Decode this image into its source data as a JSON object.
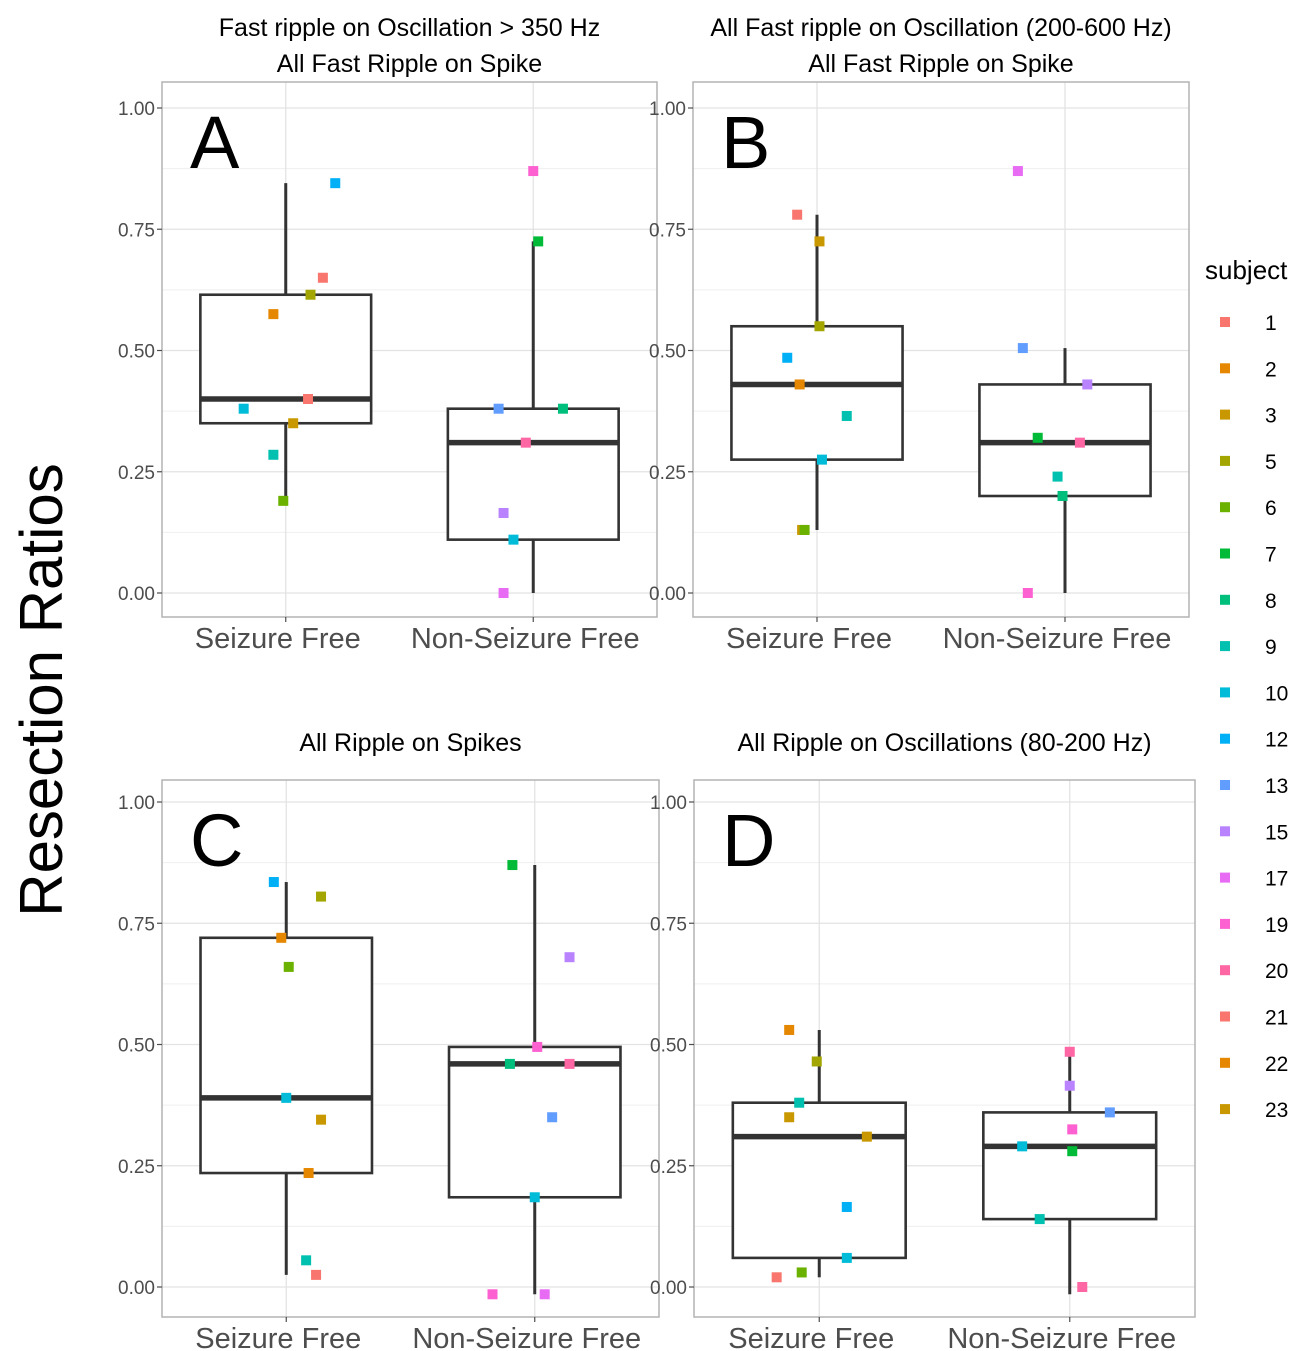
{
  "figure": {
    "ylabel": "Resection Ratios",
    "legend": {
      "title": "subject",
      "position": "right",
      "entries": [
        {
          "label": "1",
          "color": "#F8766D"
        },
        {
          "label": "2",
          "color": "#E58700"
        },
        {
          "label": "3",
          "color": "#C99800"
        },
        {
          "label": "5",
          "color": "#A3A500"
        },
        {
          "label": "6",
          "color": "#6BB100"
        },
        {
          "label": "7",
          "color": "#00BA38"
        },
        {
          "label": "8",
          "color": "#00BF7D"
        },
        {
          "label": "9",
          "color": "#00C0AF"
        },
        {
          "label": "10",
          "color": "#00BCD8"
        },
        {
          "label": "12",
          "color": "#00B0F6"
        },
        {
          "label": "13",
          "color": "#619CFF"
        },
        {
          "label": "15",
          "color": "#B983FF"
        },
        {
          "label": "17",
          "color": "#E76BF3"
        },
        {
          "label": "19",
          "color": "#FD61D1"
        },
        {
          "label": "20",
          "color": "#FF67A4"
        },
        {
          "label": "21",
          "color": "#F8766D"
        },
        {
          "label": "22",
          "color": "#E58700"
        },
        {
          "label": "23",
          "color": "#C99800"
        }
      ]
    }
  },
  "chart_data": [
    {
      "type": "box",
      "panel_letter": "A",
      "title_lines": [
        "Fast ripple on Oscillation > 350 Hz",
        "All Fast Ripple on Spike"
      ],
      "categories": [
        "Seizure Free",
        "Non-Seizure Free"
      ],
      "ylim": [
        -0.04,
        1.06
      ],
      "yticks": [
        "0.00",
        "0.25",
        "0.50",
        "0.75",
        "1.00"
      ],
      "grid": true,
      "boxes": [
        {
          "lower_whisker": 0.19,
          "q1": 0.35,
          "median": 0.4,
          "q3": 0.615,
          "upper_whisker": 0.845
        },
        {
          "lower_whisker": 0.0,
          "q1": 0.11,
          "median": 0.31,
          "q3": 0.38,
          "upper_whisker": 0.725
        }
      ],
      "points": [
        {
          "group": 0,
          "dx": 0.15,
          "y": 0.65,
          "color": "#F8766D"
        },
        {
          "group": 0,
          "dx": -0.05,
          "y": 0.575,
          "color": "#E58700"
        },
        {
          "group": 0,
          "dx": 0.03,
          "y": 0.35,
          "color": "#C99800"
        },
        {
          "group": 0,
          "dx": 0.1,
          "y": 0.615,
          "color": "#A3A500"
        },
        {
          "group": 0,
          "dx": -0.01,
          "y": 0.19,
          "color": "#6BB100"
        },
        {
          "group": 0,
          "dx": 0.09,
          "y": 0.4,
          "color": "#F8766D"
        },
        {
          "group": 0,
          "dx": -0.17,
          "y": 0.38,
          "color": "#00BCD8"
        },
        {
          "group": 0,
          "dx": -0.05,
          "y": 0.285,
          "color": "#00C0AF"
        },
        {
          "group": 0,
          "dx": 0.2,
          "y": 0.845,
          "color": "#00B0F6"
        },
        {
          "group": 1,
          "dx": 0.02,
          "y": 0.725,
          "color": "#00BA38"
        },
        {
          "group": 1,
          "dx": 0.12,
          "y": 0.38,
          "color": "#00BF7D"
        },
        {
          "group": 1,
          "dx": -0.14,
          "y": 0.38,
          "color": "#619CFF"
        },
        {
          "group": 1,
          "dx": -0.08,
          "y": 0.11,
          "color": "#00BCD8"
        },
        {
          "group": 1,
          "dx": -0.12,
          "y": 0.165,
          "color": "#B983FF"
        },
        {
          "group": 1,
          "dx": 0.0,
          "y": 0.87,
          "color": "#FD61D1"
        },
        {
          "group": 1,
          "dx": -0.12,
          "y": 0.0,
          "color": "#E76BF3"
        },
        {
          "group": 1,
          "dx": -0.03,
          "y": 0.31,
          "color": "#FF67A4"
        }
      ]
    },
    {
      "type": "box",
      "panel_letter": "B",
      "title_lines": [
        "All Fast ripple on Oscillation (200-600 Hz)",
        "All Fast Ripple on Spike"
      ],
      "categories": [
        "Seizure Free",
        "Non-Seizure Free"
      ],
      "ylim": [
        -0.04,
        1.06
      ],
      "yticks": [
        "0.00",
        "0.25",
        "0.50",
        "0.75",
        "1.00"
      ],
      "grid": true,
      "boxes": [
        {
          "lower_whisker": 0.13,
          "q1": 0.275,
          "median": 0.43,
          "q3": 0.55,
          "upper_whisker": 0.78
        },
        {
          "lower_whisker": 0.0,
          "q1": 0.2,
          "median": 0.31,
          "q3": 0.43,
          "upper_whisker": 0.505
        }
      ],
      "points": [
        {
          "group": 0,
          "dx": -0.08,
          "y": 0.78,
          "color": "#F8766D"
        },
        {
          "group": 0,
          "dx": 0.01,
          "y": 0.725,
          "color": "#C99800"
        },
        {
          "group": 0,
          "dx": -0.07,
          "y": 0.43,
          "color": "#E58700"
        },
        {
          "group": 0,
          "dx": 0.01,
          "y": 0.55,
          "color": "#A3A500"
        },
        {
          "group": 0,
          "dx": -0.06,
          "y": 0.13,
          "color": "#C99800"
        },
        {
          "group": 0,
          "dx": -0.05,
          "y": 0.13,
          "color": "#6BB100"
        },
        {
          "group": 0,
          "dx": -0.12,
          "y": 0.485,
          "color": "#00B0F6"
        },
        {
          "group": 0,
          "dx": 0.12,
          "y": 0.365,
          "color": "#00C0AF"
        },
        {
          "group": 0,
          "dx": 0.02,
          "y": 0.275,
          "color": "#00BCD8"
        },
        {
          "group": 1,
          "dx": -0.17,
          "y": 0.505,
          "color": "#619CFF"
        },
        {
          "group": 1,
          "dx": 0.09,
          "y": 0.43,
          "color": "#B983FF"
        },
        {
          "group": 1,
          "dx": -0.11,
          "y": 0.32,
          "color": "#00BA38"
        },
        {
          "group": 1,
          "dx": 0.06,
          "y": 0.31,
          "color": "#FF67A4"
        },
        {
          "group": 1,
          "dx": -0.03,
          "y": 0.24,
          "color": "#00C0AF"
        },
        {
          "group": 1,
          "dx": -0.01,
          "y": 0.2,
          "color": "#00BF7D"
        },
        {
          "group": 1,
          "dx": -0.19,
          "y": 0.87,
          "color": "#E76BF3"
        },
        {
          "group": 1,
          "dx": -0.15,
          "y": 0.0,
          "color": "#FD61D1"
        }
      ]
    },
    {
      "type": "box",
      "panel_letter": "C",
      "title_lines": [
        "All Ripple on Spikes"
      ],
      "categories": [
        "Seizure Free",
        "Non-Seizure Free"
      ],
      "ylim": [
        -0.04,
        1.06
      ],
      "yticks": [
        "0.00",
        "0.25",
        "0.50",
        "0.75",
        "1.00"
      ],
      "grid": true,
      "boxes": [
        {
          "lower_whisker": 0.025,
          "q1": 0.235,
          "median": 0.39,
          "q3": 0.72,
          "upper_whisker": 0.835
        },
        {
          "lower_whisker": -0.015,
          "q1": 0.185,
          "median": 0.46,
          "q3": 0.495,
          "upper_whisker": 0.87
        }
      ],
      "points": [
        {
          "group": 0,
          "dx": -0.05,
          "y": 0.835,
          "color": "#00B0F6"
        },
        {
          "group": 0,
          "dx": -0.02,
          "y": 0.72,
          "color": "#E58700"
        },
        {
          "group": 0,
          "dx": 0.14,
          "y": 0.805,
          "color": "#A3A500"
        },
        {
          "group": 0,
          "dx": 0.01,
          "y": 0.66,
          "color": "#6BB100"
        },
        {
          "group": 0,
          "dx": 0.0,
          "y": 0.39,
          "color": "#00BCD8"
        },
        {
          "group": 0,
          "dx": 0.14,
          "y": 0.345,
          "color": "#C99800"
        },
        {
          "group": 0,
          "dx": 0.09,
          "y": 0.235,
          "color": "#E58700"
        },
        {
          "group": 0,
          "dx": 0.08,
          "y": 0.055,
          "color": "#00C0AF"
        },
        {
          "group": 0,
          "dx": 0.12,
          "y": 0.025,
          "color": "#F8766D"
        },
        {
          "group": 1,
          "dx": -0.09,
          "y": 0.87,
          "color": "#00BA38"
        },
        {
          "group": 1,
          "dx": 0.14,
          "y": 0.68,
          "color": "#B983FF"
        },
        {
          "group": 1,
          "dx": 0.01,
          "y": 0.495,
          "color": "#FD61D1"
        },
        {
          "group": 1,
          "dx": -0.1,
          "y": 0.46,
          "color": "#00BF7D"
        },
        {
          "group": 1,
          "dx": 0.14,
          "y": 0.46,
          "color": "#FF67A4"
        },
        {
          "group": 1,
          "dx": 0.07,
          "y": 0.35,
          "color": "#619CFF"
        },
        {
          "group": 1,
          "dx": 0.0,
          "y": 0.185,
          "color": "#00BCD8"
        },
        {
          "group": 1,
          "dx": -0.17,
          "y": -0.015,
          "color": "#FD61D1"
        },
        {
          "group": 1,
          "dx": 0.04,
          "y": -0.015,
          "color": "#E76BF3"
        }
      ]
    },
    {
      "type": "box",
      "panel_letter": "D",
      "title_lines": [
        "All Ripple on Oscillations (80-200 Hz)"
      ],
      "categories": [
        "Seizure Free",
        "Non-Seizure Free"
      ],
      "ylim": [
        -0.04,
        1.06
      ],
      "yticks": [
        "0.00",
        "0.25",
        "0.50",
        "0.75",
        "1.00"
      ],
      "grid": true,
      "boxes": [
        {
          "lower_whisker": 0.02,
          "q1": 0.06,
          "median": 0.31,
          "q3": 0.38,
          "upper_whisker": 0.53
        },
        {
          "lower_whisker": -0.015,
          "q1": 0.14,
          "median": 0.29,
          "q3": 0.36,
          "upper_whisker": 0.485
        }
      ],
      "points": [
        {
          "group": 0,
          "dx": -0.12,
          "y": 0.53,
          "color": "#E58700"
        },
        {
          "group": 0,
          "dx": -0.01,
          "y": 0.465,
          "color": "#A3A500"
        },
        {
          "group": 0,
          "dx": -0.08,
          "y": 0.38,
          "color": "#00C0AF"
        },
        {
          "group": 0,
          "dx": -0.12,
          "y": 0.35,
          "color": "#C99800"
        },
        {
          "group": 0,
          "dx": 0.19,
          "y": 0.31,
          "color": "#C99800"
        },
        {
          "group": 0,
          "dx": 0.11,
          "y": 0.165,
          "color": "#00B0F6"
        },
        {
          "group": 0,
          "dx": 0.11,
          "y": 0.06,
          "color": "#00BCD8"
        },
        {
          "group": 0,
          "dx": -0.07,
          "y": 0.03,
          "color": "#6BB100"
        },
        {
          "group": 0,
          "dx": -0.17,
          "y": 0.02,
          "color": "#F8766D"
        },
        {
          "group": 1,
          "dx": 0.0,
          "y": 0.485,
          "color": "#FF67A4"
        },
        {
          "group": 1,
          "dx": 0.0,
          "y": 0.415,
          "color": "#B983FF"
        },
        {
          "group": 1,
          "dx": 0.16,
          "y": 0.36,
          "color": "#619CFF"
        },
        {
          "group": 1,
          "dx": 0.01,
          "y": 0.325,
          "color": "#FD61D1"
        },
        {
          "group": 1,
          "dx": -0.19,
          "y": 0.29,
          "color": "#00BCD8"
        },
        {
          "group": 1,
          "dx": 0.01,
          "y": 0.28,
          "color": "#00BA38"
        },
        {
          "group": 1,
          "dx": -0.12,
          "y": 0.14,
          "color": "#00C0AF"
        },
        {
          "group": 1,
          "dx": 0.05,
          "y": 0.0,
          "color": "#FF67A4"
        }
      ]
    }
  ]
}
